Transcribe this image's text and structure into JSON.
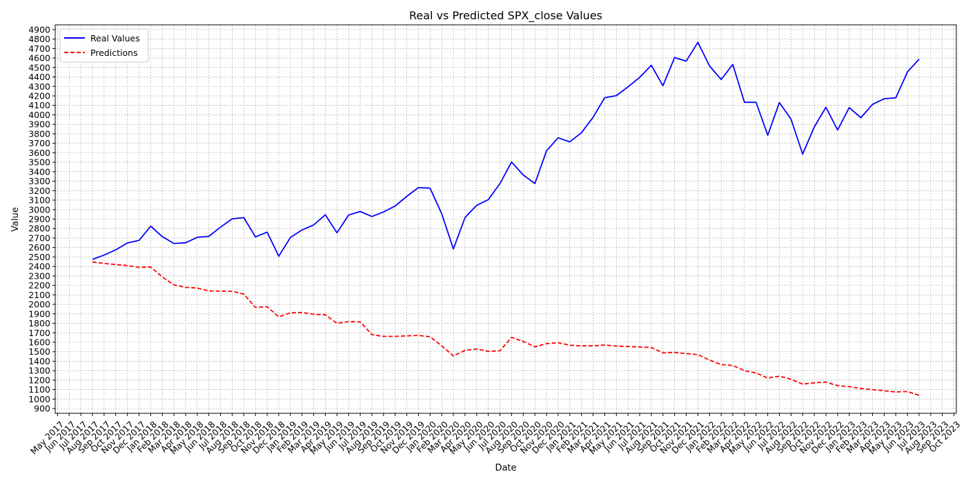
{
  "chart_data": {
    "type": "line",
    "title": "Real vs Predicted SPX_close Values",
    "xlabel": "Date",
    "ylabel": "Value",
    "ylim": [
      850,
      4950
    ],
    "yticks": [
      900,
      1000,
      1100,
      1200,
      1300,
      1400,
      1500,
      1600,
      1700,
      1800,
      1900,
      2000,
      2100,
      2200,
      2300,
      2400,
      2500,
      2600,
      2700,
      2800,
      2900,
      3000,
      3100,
      3200,
      3300,
      3400,
      3500,
      3600,
      3700,
      3800,
      3900,
      4000,
      4100,
      4200,
      4300,
      4400,
      4500,
      4600,
      4700,
      4800,
      4900
    ],
    "x_tick_labels": [
      "May 2017",
      "Jun 2017",
      "Jul 2017",
      "Aug 2017",
      "Sep 2017",
      "Oct 2017",
      "Nov 2017",
      "Dec 2017",
      "Jan 2018",
      "Feb 2018",
      "Mar 2018",
      "Apr 2018",
      "May 2018",
      "Jun 2018",
      "Jul 2018",
      "Aug 2018",
      "Sep 2018",
      "Oct 2018",
      "Nov 2018",
      "Dec 2018",
      "Jan 2019",
      "Feb 2019",
      "Mar 2019",
      "Apr 2019",
      "May 2019",
      "Jun 2019",
      "Jul 2019",
      "Aug 2019",
      "Sep 2019",
      "Oct 2019",
      "Nov 2019",
      "Dec 2019",
      "Jan 2020",
      "Feb 2020",
      "Mar 2020",
      "Apr 2020",
      "May 2020",
      "Jun 2020",
      "Jul 2020",
      "Aug 2020",
      "Sep 2020",
      "Oct 2020",
      "Nov 2020",
      "Dec 2020",
      "Jan 2021",
      "Feb 2021",
      "Mar 2021",
      "Apr 2021",
      "May 2021",
      "Jun 2021",
      "Jul 2021",
      "Aug 2021",
      "Sep 2021",
      "Oct 2021",
      "Nov 2021",
      "Dec 2021",
      "Jan 2022",
      "Feb 2022",
      "Mar 2022",
      "Apr 2022",
      "May 2022",
      "Jun 2022",
      "Jul 2022",
      "Aug 2022",
      "Sep 2022",
      "Oct 2022",
      "Nov 2022",
      "Dec 2022",
      "Jan 2023",
      "Feb 2023",
      "Mar 2023",
      "Apr 2023",
      "May 2023",
      "Jun 2023",
      "Jul 2023",
      "Aug 2023",
      "Sep 2023",
      "Oct 2023"
    ],
    "x": [
      "Aug 2017",
      "Sep 2017",
      "Oct 2017",
      "Nov 2017",
      "Dec 2017",
      "Jan 2018",
      "Feb 2018",
      "Mar 2018",
      "Apr 2018",
      "May 2018",
      "Jun 2018",
      "Jul 2018",
      "Aug 2018",
      "Sep 2018",
      "Oct 2018",
      "Nov 2018",
      "Dec 2018",
      "Jan 2019",
      "Feb 2019",
      "Mar 2019",
      "Apr 2019",
      "May 2019",
      "Jun 2019",
      "Jul 2019",
      "Aug 2019",
      "Sep 2019",
      "Oct 2019",
      "Nov 2019",
      "Dec 2019",
      "Jan 2020",
      "Feb 2020",
      "Mar 2020",
      "Apr 2020",
      "May 2020",
      "Jun 2020",
      "Jul 2020",
      "Aug 2020",
      "Sep 2020",
      "Oct 2020",
      "Nov 2020",
      "Dec 2020",
      "Jan 2021",
      "Feb 2021",
      "Mar 2021",
      "Apr 2021",
      "May 2021",
      "Jun 2021",
      "Jul 2021",
      "Aug 2021",
      "Sep 2021",
      "Oct 2021",
      "Nov 2021",
      "Dec 2021",
      "Jan 2022",
      "Feb 2022",
      "Mar 2022",
      "Apr 2022",
      "May 2022",
      "Jun 2022",
      "Jul 2022",
      "Aug 2022",
      "Sep 2022",
      "Oct 2022",
      "Nov 2022",
      "Dec 2022",
      "Jan 2023",
      "Feb 2023",
      "Mar 2023",
      "Apr 2023",
      "May 2023",
      "Jun 2023",
      "Jul 2023"
    ],
    "series": [
      {
        "name": "Real Values",
        "color": "#0000ff",
        "style": "solid",
        "values": [
          2475,
          2520,
          2575,
          2648,
          2675,
          2825,
          2715,
          2642,
          2650,
          2708,
          2718,
          2815,
          2903,
          2915,
          2712,
          2762,
          2508,
          2705,
          2785,
          2838,
          2945,
          2755,
          2942,
          2980,
          2927,
          2975,
          3038,
          3140,
          3232,
          3226,
          2955,
          2585,
          2915,
          3045,
          3105,
          3275,
          3502,
          3365,
          3275,
          3620,
          3758,
          3715,
          3812,
          3975,
          4181,
          4203,
          4295,
          4395,
          4523,
          4308,
          4605,
          4567,
          4766,
          4516,
          4373,
          4532,
          4133,
          4132,
          3785,
          4130,
          3955,
          3585,
          3872,
          4080,
          3840,
          4077,
          3970,
          4110,
          4170,
          4180,
          4452,
          4588
        ]
      },
      {
        "name": "Predictions",
        "color": "#ff0000",
        "style": "dashed",
        "values": [
          2448,
          2432,
          2420,
          2410,
          2390,
          2395,
          2290,
          2205,
          2180,
          2172,
          2142,
          2140,
          2138,
          2108,
          1968,
          1975,
          1868,
          1910,
          1915,
          1895,
          1890,
          1800,
          1818,
          1815,
          1680,
          1662,
          1662,
          1668,
          1672,
          1658,
          1562,
          1455,
          1515,
          1528,
          1505,
          1510,
          1652,
          1608,
          1552,
          1585,
          1595,
          1568,
          1562,
          1562,
          1570,
          1560,
          1555,
          1550,
          1545,
          1488,
          1492,
          1480,
          1470,
          1412,
          1365,
          1355,
          1300,
          1275,
          1222,
          1242,
          1210,
          1158,
          1172,
          1180,
          1142,
          1132,
          1112,
          1100,
          1088,
          1075,
          1080,
          1040
        ]
      }
    ],
    "legend": {
      "position": "top-left"
    },
    "grid": true
  }
}
